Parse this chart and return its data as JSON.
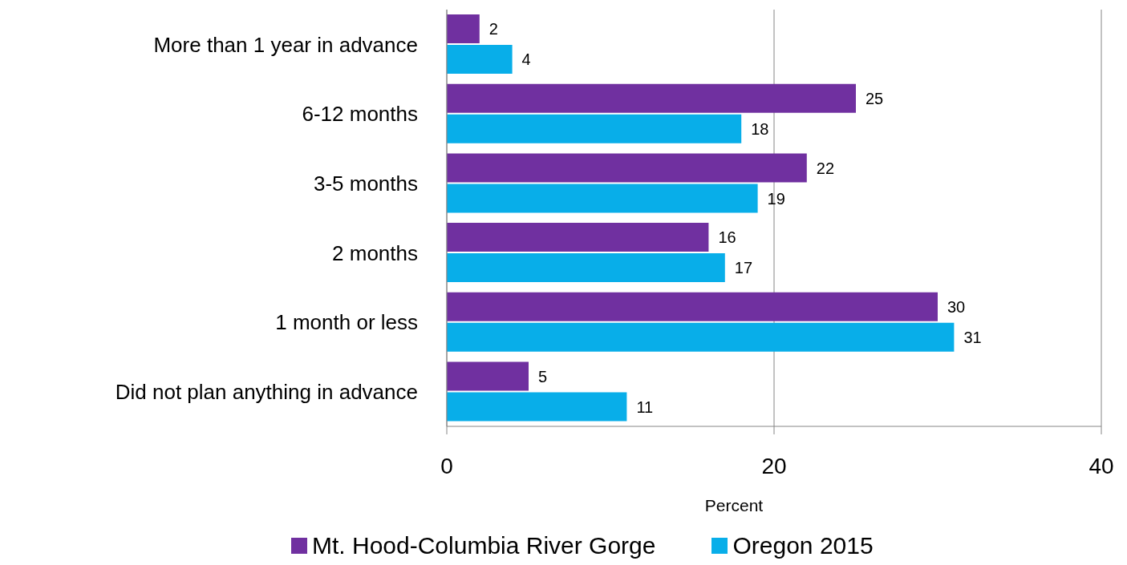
{
  "chart_data": {
    "type": "bar",
    "orientation": "horizontal",
    "categories": [
      "More than 1 year in advance",
      "6-12 months",
      "3-5 months",
      "2 months",
      "1 month or less",
      "Did not plan anything in advance"
    ],
    "series": [
      {
        "name": "Mt. Hood-Columbia River Gorge",
        "color": "#7030a0",
        "values": [
          2,
          25,
          22,
          16,
          30,
          5
        ]
      },
      {
        "name": "Oregon 2015",
        "color": "#08aee9",
        "values": [
          4,
          18,
          19,
          17,
          31,
          11
        ]
      }
    ],
    "xlabel": "Percent",
    "xlim": [
      0,
      40
    ],
    "xticks": [
      0,
      20,
      40
    ],
    "grid": "x",
    "legend": "bottom",
    "data_labels": true
  }
}
